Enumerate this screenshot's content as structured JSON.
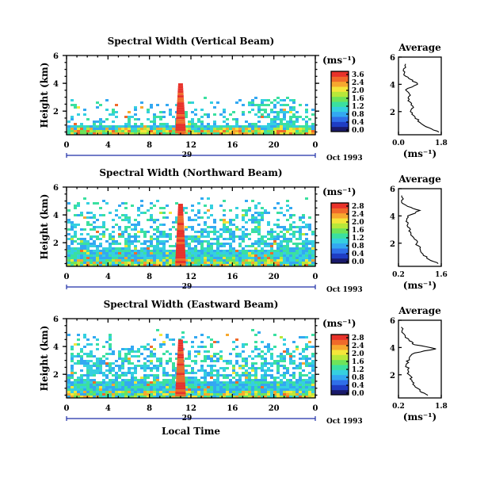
{
  "figure": {
    "xlabel": "Local Time",
    "date_label": "Oct 1993",
    "day_label": "29",
    "cbar_unit": "(ms⁻¹)",
    "avg_title": "Average",
    "avg_xlabel": "(ms⁻¹)"
  },
  "colormap": [
    "#1a1a6b",
    "#1f3dc4",
    "#2f6fe8",
    "#33a8f2",
    "#35d0e0",
    "#3be0a0",
    "#6ee35a",
    "#b8e83a",
    "#f5e63a",
    "#f7a82f",
    "#f06a2a",
    "#e8322a"
  ],
  "chart_data": [
    {
      "type": "heatmap",
      "title": "Spectral Width (Vertical Beam)",
      "ylabel": "Height (km)",
      "xlabel": "",
      "x_ticks": [
        "0",
        "4",
        "8",
        "12",
        "16",
        "20",
        "0"
      ],
      "y_ticks": [
        "6",
        "4",
        "2"
      ],
      "xlim": [
        0,
        24
      ],
      "ylim": [
        0.3,
        6
      ],
      "cbar_ticks": [
        "3.6",
        "2.4",
        "2.0",
        "1.6",
        "1.2",
        "0.8",
        "0.4",
        "0.0"
      ],
      "cbar_range": [
        0.0,
        3.6
      ],
      "high_feature": {
        "x_center": 11.0,
        "top_height": 4.0
      },
      "average_profile": {
        "x_ticks": [
          "0.0",
          "1.8"
        ],
        "y_ticks": [
          "6",
          "4",
          "2"
        ],
        "xlim": [
          0.0,
          1.8
        ],
        "heights": [
          0.5,
          0.8,
          1.2,
          1.6,
          2.0,
          2.4,
          2.8,
          3.2,
          3.6,
          4.0,
          4.3,
          4.6,
          5.0,
          5.5
        ],
        "values": [
          1.7,
          1.3,
          0.9,
          0.7,
          0.5,
          0.6,
          0.4,
          0.5,
          0.3,
          0.8,
          0.6,
          0.3,
          0.2,
          0.3
        ]
      }
    },
    {
      "type": "heatmap",
      "title": "Spectral Width (Northward Beam)",
      "ylabel": "Height (km)",
      "xlabel": "",
      "x_ticks": [
        "0",
        "4",
        "8",
        "12",
        "16",
        "20",
        "0"
      ],
      "y_ticks": [
        "6",
        "4",
        "2"
      ],
      "xlim": [
        0,
        24
      ],
      "ylim": [
        0.3,
        6
      ],
      "cbar_ticks": [
        "2.8",
        "2.4",
        "2.0",
        "1.6",
        "1.2",
        "0.8",
        "0.4",
        "0.0"
      ],
      "cbar_range": [
        0.0,
        2.8
      ],
      "high_feature": {
        "x_center": 11.0,
        "top_height": 4.8
      },
      "average_profile": {
        "x_ticks": [
          "0.2",
          "1.6"
        ],
        "y_ticks": [
          "6",
          "4",
          "2"
        ],
        "xlim": [
          0.2,
          1.6
        ],
        "heights": [
          0.5,
          0.8,
          1.2,
          1.6,
          2.0,
          2.4,
          2.8,
          3.2,
          3.6,
          4.0,
          4.4,
          4.7,
          5.0,
          5.5
        ],
        "values": [
          1.5,
          1.2,
          1.0,
          0.9,
          0.8,
          0.7,
          0.6,
          0.5,
          0.45,
          0.5,
          0.9,
          0.5,
          0.3,
          0.3
        ]
      }
    },
    {
      "type": "heatmap",
      "title": "Spectral Width (Eastward Beam)",
      "ylabel": "Height (km)",
      "xlabel": "Local Time",
      "x_ticks": [
        "0",
        "4",
        "8",
        "12",
        "16",
        "20",
        "0"
      ],
      "y_ticks": [
        "6",
        "4",
        "2"
      ],
      "xlim": [
        0,
        24
      ],
      "ylim": [
        0.3,
        6
      ],
      "cbar_ticks": [
        "2.8",
        "2.4",
        "2.0",
        "1.6",
        "1.2",
        "0.8",
        "0.4",
        "0.0"
      ],
      "cbar_range": [
        0.0,
        2.8
      ],
      "high_feature": {
        "x_center": 11.0,
        "top_height": 4.5
      },
      "average_profile": {
        "x_ticks": [
          "0.2",
          "1.8"
        ],
        "y_ticks": [
          "6",
          "4",
          "2"
        ],
        "xlim": [
          0.2,
          1.8
        ],
        "heights": [
          0.5,
          0.8,
          1.2,
          1.6,
          2.0,
          2.4,
          2.8,
          3.2,
          3.6,
          3.9,
          4.2,
          4.5,
          5.0,
          5.5
        ],
        "values": [
          1.3,
          1.0,
          0.8,
          0.7,
          0.6,
          0.55,
          0.5,
          0.6,
          0.8,
          1.6,
          0.8,
          0.6,
          0.4,
          0.3
        ]
      }
    }
  ]
}
